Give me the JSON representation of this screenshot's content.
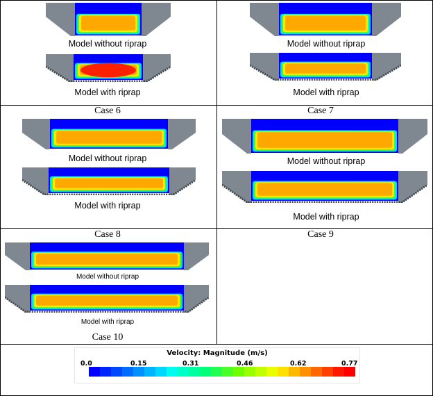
{
  "labels": {
    "without": "Model without  riprap",
    "with": "Model with riprap"
  },
  "cases": {
    "c6": "Case 6",
    "c7": "Case 7",
    "c8": "Case 8",
    "c9": "Case 9",
    "c10": "Case 10"
  },
  "legend": {
    "title": "Velocity: Magnitude (m/s)",
    "ticks": [
      "0.0",
      "0.15",
      "0.31",
      "0.46",
      "0.62",
      "0.77"
    ],
    "colors": [
      "#0000ff",
      "#0024ff",
      "#0048ff",
      "#006cff",
      "#0090ff",
      "#00b4ff",
      "#00d8ff",
      "#00fcf0",
      "#00ffc8",
      "#00ffa0",
      "#00ff78",
      "#20ff50",
      "#48ff28",
      "#70ff00",
      "#98ff00",
      "#c0ff00",
      "#e8ff00",
      "#ffe000",
      "#ffb800",
      "#ff9000",
      "#ff6800",
      "#ff4000",
      "#ff1800",
      "#ff0000"
    ]
  },
  "palette": {
    "blue": "#0000ff",
    "cyan": "#00d8ff",
    "green": "#30ff50",
    "yellow": "#ffe800",
    "orange": "#ffa800",
    "red": "#ff2000",
    "bank": "#7f8790"
  }
}
